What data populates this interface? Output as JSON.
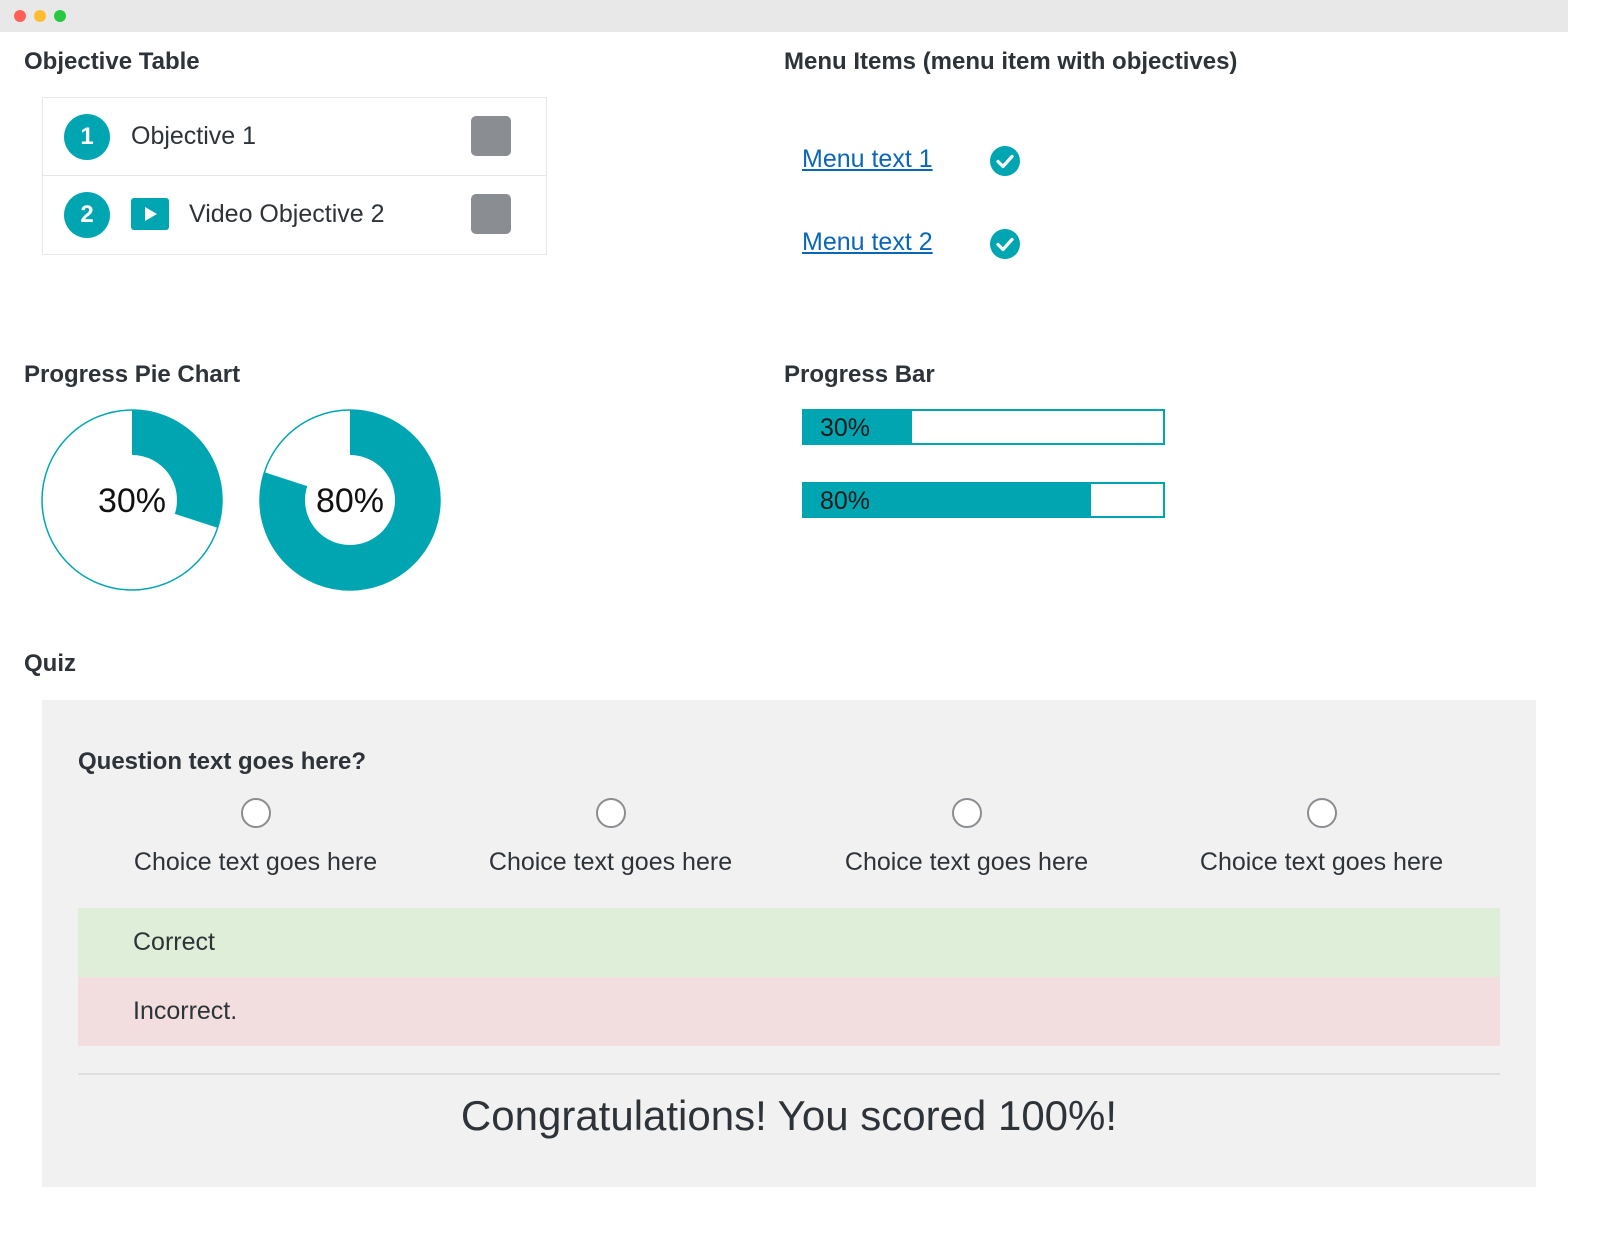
{
  "window": {
    "controls": [
      "close",
      "minimize",
      "maximize"
    ]
  },
  "objective_table": {
    "title": "Objective Table",
    "rows": [
      {
        "number": "1",
        "label": "Objective 1",
        "has_video_icon": false,
        "complete": false
      },
      {
        "number": "2",
        "label": "Video Objective 2",
        "has_video_icon": true,
        "complete": false
      }
    ]
  },
  "menu_items": {
    "title": "Menu Items (menu item with objectives)",
    "items": [
      {
        "label": "Menu text 1",
        "status_icon": "check-circle-icon"
      },
      {
        "label": "Menu text 2",
        "status_icon": "check-circle-icon"
      }
    ]
  },
  "pie": {
    "title": "Progress Pie Chart",
    "charts": [
      {
        "value": 30,
        "label": "30%"
      },
      {
        "value": 80,
        "label": "80%"
      }
    ]
  },
  "progress_bar": {
    "title": "Progress Bar",
    "bars": [
      {
        "value": 30,
        "label": "30%"
      },
      {
        "value": 80,
        "label": "80%"
      }
    ]
  },
  "quiz": {
    "title": "Quiz",
    "question": "Question text goes here?",
    "choices": [
      "Choice text goes here",
      "Choice text goes here",
      "Choice text goes here",
      "Choice text goes here"
    ],
    "feedback_correct": "Correct",
    "feedback_incorrect": "Incorrect.",
    "result": "Congratulations! You scored 100%!"
  },
  "colors": {
    "accent": "#00a5b2",
    "link": "#0a66b8",
    "correct_bg": "#dfeed8",
    "incorrect_bg": "#f2dede",
    "quiz_bg": "#f1f1f1"
  }
}
